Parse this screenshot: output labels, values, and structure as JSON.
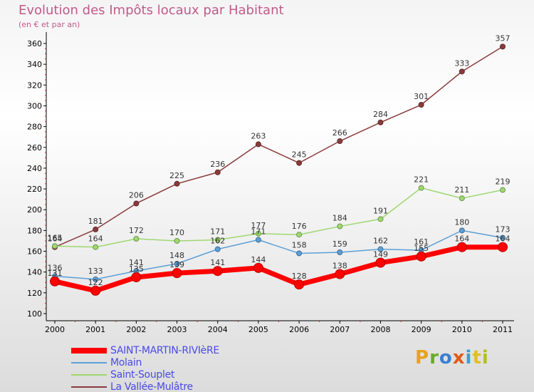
{
  "header": {
    "title": "Evolution des Impôts locaux par Habitant",
    "subtitle": "(en € et par an)"
  },
  "logo": {
    "text": "Proxiti",
    "colors": [
      "#e8a21e",
      "#6aaa2a",
      "#3a7fd0",
      "#e05a1a",
      "#3aa0d0",
      "#e0c020",
      "#b0c020"
    ]
  },
  "chart_data": {
    "type": "line",
    "x": [
      "2000",
      "2001",
      "2002",
      "2003",
      "2004",
      "2005",
      "2006",
      "2007",
      "2008",
      "2009",
      "2010",
      "2011"
    ],
    "ylim": [
      100,
      360
    ],
    "yticks": [
      "100",
      "120",
      "140",
      "160",
      "180",
      "200",
      "220",
      "240",
      "260",
      "280",
      "300",
      "320",
      "340",
      "360"
    ],
    "grid": false,
    "legend_position": "bottom-left",
    "series": [
      {
        "name": "SAINT-MARTIN-RIVIèRE",
        "color": "#ff0000",
        "width": 7,
        "values": [
          131,
          122,
          135,
          139,
          141,
          144,
          128,
          138,
          149,
          155,
          164,
          164
        ],
        "labels": [
          "131",
          "122",
          "135",
          "139",
          "141",
          "144",
          "128",
          "138",
          "149",
          "155",
          "164",
          "164"
        ]
      },
      {
        "name": "Molain",
        "color": "#5c9fd6",
        "width": 1.5,
        "values": [
          136,
          133,
          141,
          148,
          162,
          171,
          158,
          159,
          162,
          161,
          180,
          173
        ],
        "labels": [
          "136",
          "133",
          "141",
          "148",
          "162",
          "171",
          "158",
          "159",
          "162",
          "161",
          "180",
          "173"
        ]
      },
      {
        "name": "Saint-Souplet",
        "color": "#9fd870",
        "width": 1.5,
        "values": [
          165,
          164,
          172,
          170,
          171,
          177,
          176,
          184,
          191,
          221,
          211,
          219
        ],
        "labels": [
          "165",
          "164",
          "172",
          "170",
          "171",
          "177",
          "176",
          "184",
          "191",
          "221",
          "211",
          "219"
        ]
      },
      {
        "name": "La Vallée-Mulâtre",
        "color": "#8b3a3a",
        "width": 1.5,
        "values": [
          164,
          181,
          206,
          225,
          236,
          263,
          245,
          266,
          284,
          301,
          333,
          357
        ],
        "labels": [
          "164",
          "181",
          "206",
          "225",
          "236",
          "263",
          "245",
          "266",
          "284",
          "301",
          "333",
          "357"
        ]
      }
    ]
  }
}
